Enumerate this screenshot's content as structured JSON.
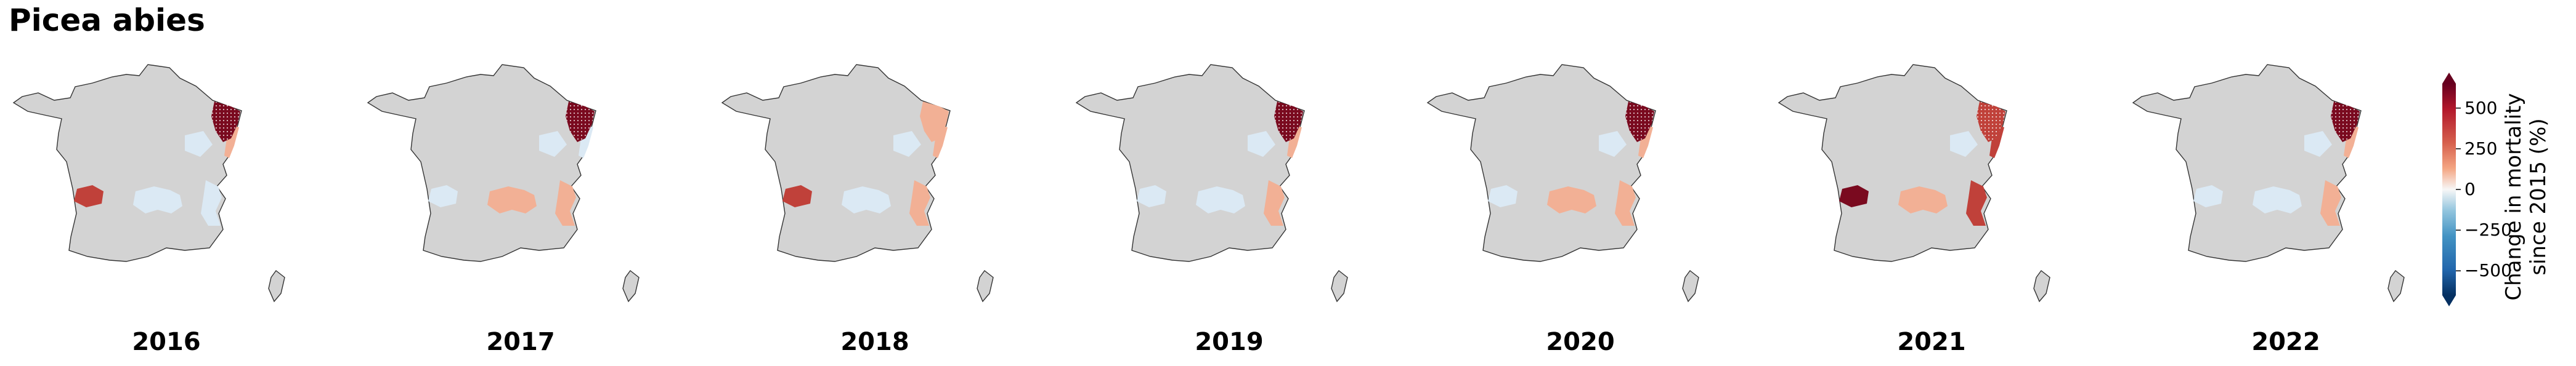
{
  "title": "Picea abies",
  "colorbar": {
    "label_line1": "Change in mortality",
    "label_line2": "since 2015 (%)",
    "ticks": [
      "500",
      "250",
      "0",
      "−250",
      "−500"
    ],
    "tick_values": [
      500,
      250,
      0,
      -250,
      -500
    ],
    "range": [
      -650,
      650
    ],
    "colormap": "RdBu_r",
    "extend": "both"
  },
  "colors": {
    "base_land": "#d3d3d3",
    "outline": "#333333",
    "dark_red": "#7a0a1f",
    "red": "#c0413a",
    "light_red": "#f2b095",
    "light_blue": "#dbe9f4"
  },
  "maps": [
    {
      "year": "2016",
      "ne": "dark_red",
      "ne_hatched": true,
      "alps": "light_blue",
      "central": "light_blue",
      "southwest": "red",
      "east_strip": "light_red"
    },
    {
      "year": "2017",
      "ne": "dark_red",
      "ne_hatched": true,
      "alps": "light_red",
      "central": "light_red",
      "southwest": "light_blue",
      "east_strip": "light_blue"
    },
    {
      "year": "2018",
      "ne": "light_red",
      "ne_hatched": false,
      "alps": "light_red",
      "central": "light_blue",
      "southwest": "red",
      "east_strip": "light_red"
    },
    {
      "year": "2019",
      "ne": "dark_red",
      "ne_hatched": true,
      "alps": "light_red",
      "central": "light_blue",
      "southwest": "light_blue",
      "east_strip": "light_red"
    },
    {
      "year": "2020",
      "ne": "dark_red",
      "ne_hatched": true,
      "alps": "light_red",
      "central": "light_red",
      "southwest": "light_blue",
      "east_strip": "light_red"
    },
    {
      "year": "2021",
      "ne": "red",
      "ne_hatched": true,
      "alps": "red",
      "central": "light_red",
      "southwest": "dark_red",
      "east_strip": "red"
    },
    {
      "year": "2022",
      "ne": "dark_red",
      "ne_hatched": true,
      "alps": "light_red",
      "central": "light_blue",
      "southwest": "light_blue",
      "east_strip": "light_red"
    }
  ]
}
